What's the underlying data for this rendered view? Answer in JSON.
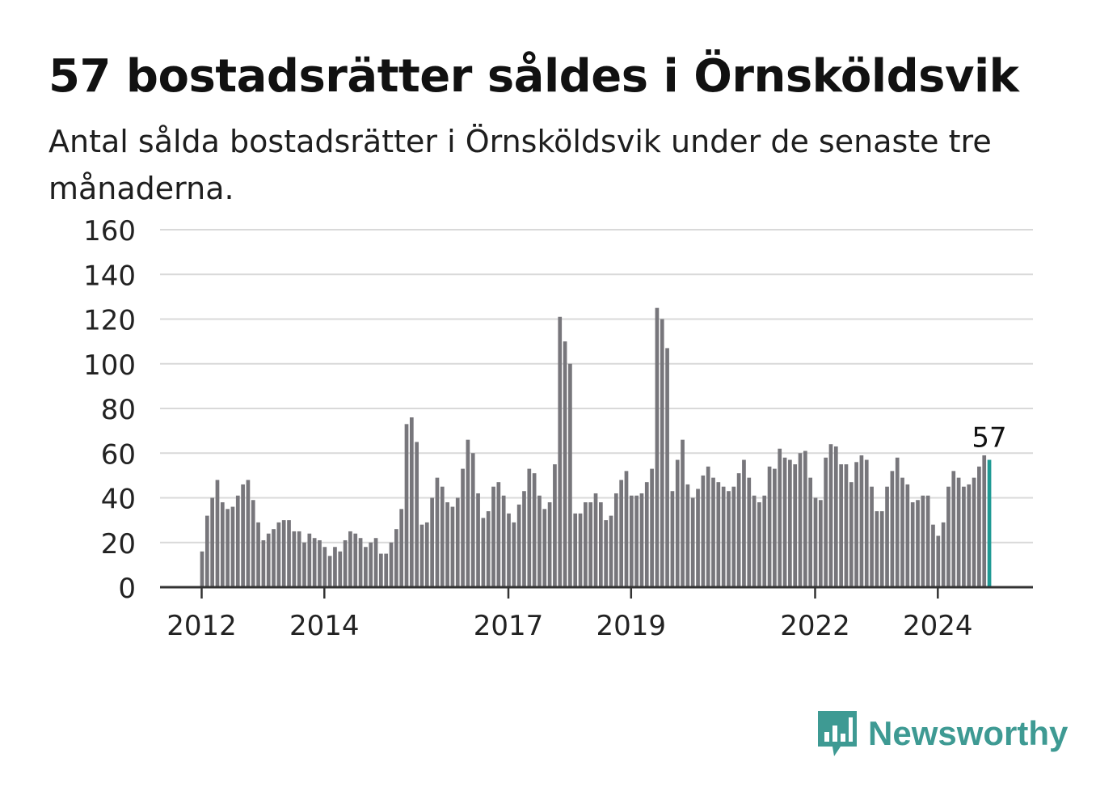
{
  "title": "57 bostadsrätter såldes i Örnsköldsvik",
  "subtitle": "Antal sålda bostadsrätter i Örnsköldsvik under de senaste tre månaderna.",
  "brand": {
    "name": "Newsworthy",
    "icon": "newsworthy-logo-icon",
    "color": "#3e9a93"
  },
  "colors": {
    "bar": "#77767b",
    "highlight": "#1f9a94",
    "grid": "#d9d9d9",
    "axis": "#333333"
  },
  "chart_data": {
    "type": "bar",
    "title": "57 bostadsrätter såldes i Örnsköldsvik",
    "xlabel": "",
    "ylabel": "",
    "ylim": [
      0,
      160
    ],
    "y_ticks": [
      0,
      20,
      40,
      60,
      80,
      100,
      120,
      140,
      160
    ],
    "x_ticks": [
      2012,
      2014,
      2017,
      2019,
      2022,
      2024
    ],
    "x_tick_labels": [
      "2012",
      "2014",
      "2017",
      "2019",
      "2022",
      "2024"
    ],
    "start": "2012-01",
    "frequency": "monthly",
    "grid": true,
    "highlight_label": "57",
    "values": [
      16,
      32,
      40,
      48,
      38,
      35,
      36,
      41,
      46,
      48,
      39,
      29,
      21,
      24,
      26,
      29,
      30,
      30,
      25,
      25,
      20,
      24,
      22,
      21,
      18,
      14,
      18,
      16,
      21,
      25,
      24,
      22,
      18,
      20,
      22,
      15,
      15,
      20,
      26,
      35,
      73,
      76,
      65,
      28,
      29,
      40,
      49,
      45,
      38,
      36,
      40,
      53,
      66,
      60,
      42,
      31,
      34,
      45,
      47,
      41,
      33,
      29,
      37,
      43,
      53,
      51,
      41,
      35,
      38,
      55,
      121,
      110,
      100,
      33,
      33,
      38,
      38,
      42,
      38,
      30,
      32,
      42,
      48,
      52,
      41,
      41,
      42,
      47,
      53,
      125,
      120,
      107,
      43,
      57,
      66,
      46,
      40,
      44,
      50,
      54,
      49,
      47,
      45,
      43,
      45,
      51,
      57,
      49,
      41,
      38,
      41,
      54,
      53,
      62,
      58,
      57,
      55,
      60,
      61,
      49,
      40,
      39,
      58,
      64,
      63,
      55,
      55,
      47,
      56,
      59,
      57,
      45,
      34,
      34,
      45,
      52,
      58,
      49,
      46,
      38,
      39,
      41,
      41,
      28,
      23,
      29,
      45,
      52,
      49,
      45,
      46,
      49,
      54,
      59,
      57
    ]
  }
}
